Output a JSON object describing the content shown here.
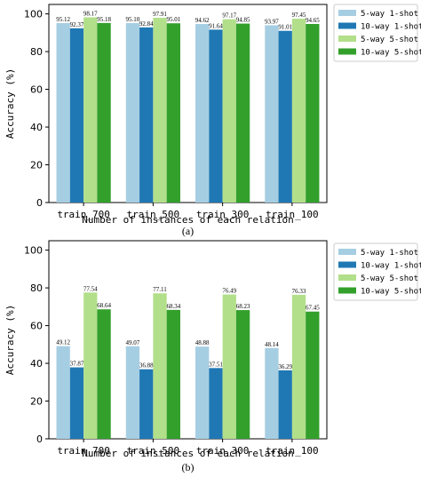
{
  "colors": {
    "s1": "#a6cee3",
    "s2": "#1f78b4",
    "s3": "#b2df8a",
    "s4": "#33a02c"
  },
  "chart_data": [
    {
      "type": "bar",
      "caption": "(a)",
      "categories": [
        "train_700",
        "train_500",
        "train_300",
        "train_100"
      ],
      "xlabel": "Number of instances of each relation",
      "ylabel": "Accuracy (%)",
      "ylim": [
        0,
        105
      ],
      "yticks": [
        0,
        20,
        40,
        60,
        80,
        100
      ],
      "legend_position": "outside-right-top",
      "series": [
        {
          "name": "5-way 1-shot",
          "values": [
            95.12,
            95.1,
            94.62,
            93.97
          ],
          "labels": [
            "95.12",
            "95.10",
            "94.62",
            "93.97"
          ]
        },
        {
          "name": "10-way 1-shot",
          "values": [
            92.37,
            92.84,
            91.64,
            91.01
          ],
          "labels": [
            "92.37",
            "92.84",
            "91.64",
            "91.01"
          ]
        },
        {
          "name": "5-way 5-shot",
          "values": [
            98.17,
            97.91,
            97.17,
            97.45
          ],
          "labels": [
            "98.17",
            "97.91",
            "97.17",
            "97.45"
          ]
        },
        {
          "name": "10-way 5-shot",
          "values": [
            95.18,
            95.01,
            94.85,
            94.65
          ],
          "labels": [
            "95.18",
            "95.01",
            "94.85",
            "94.65"
          ]
        }
      ]
    },
    {
      "type": "bar",
      "caption": "(b)",
      "categories": [
        "train_700",
        "train_500",
        "train_300",
        "train_100"
      ],
      "xlabel": "Number of instances of each relation",
      "ylabel": "Accuracy (%)",
      "ylim": [
        0,
        105
      ],
      "yticks": [
        0,
        20,
        40,
        60,
        80,
        100
      ],
      "legend_position": "outside-right-top",
      "series": [
        {
          "name": "5-way 1-shot",
          "values": [
            49.12,
            49.07,
            48.88,
            48.14
          ],
          "labels": [
            "49.12",
            "49.07",
            "48.88",
            "48.14"
          ]
        },
        {
          "name": "10-way 1-shot",
          "values": [
            37.87,
            36.88,
            37.51,
            36.29
          ],
          "labels": [
            "37.87",
            "36.88",
            "37.51",
            "36.29"
          ]
        },
        {
          "name": "5-way 5-shot",
          "values": [
            77.54,
            77.11,
            76.49,
            76.33
          ],
          "labels": [
            "77.54",
            "77.11",
            "76.49",
            "76.33"
          ]
        },
        {
          "name": "10-way 5-shot",
          "values": [
            68.64,
            68.34,
            68.23,
            67.45
          ],
          "labels": [
            "68.64",
            "68.34",
            "68.23",
            "67.45"
          ]
        }
      ]
    }
  ]
}
